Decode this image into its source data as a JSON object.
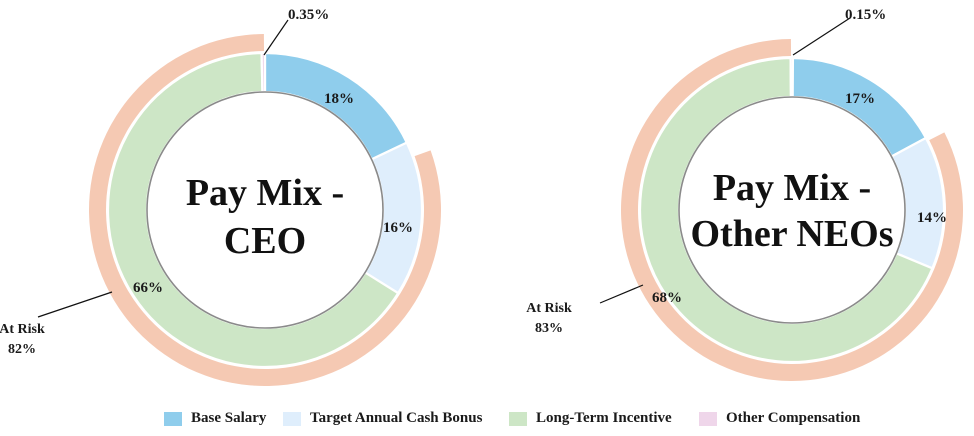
{
  "chart_data": [
    {
      "type": "pie",
      "title": "Pay Mix - CEO",
      "title_lines": [
        "Pay Mix -",
        "CEO"
      ],
      "categories": [
        "Base Salary",
        "Target Annual Cash Bonus",
        "Long-Term Incentive",
        "Other Compensation"
      ],
      "values": [
        18,
        16,
        66,
        0.35
      ],
      "value_labels": [
        "18%",
        "16%",
        "66%",
        "0.35%"
      ],
      "at_risk": {
        "label": "At Risk",
        "value": 82,
        "value_label": "82%"
      }
    },
    {
      "type": "pie",
      "title": "Pay Mix - Other NEOs",
      "title_lines": [
        "Pay Mix -",
        "Other NEOs"
      ],
      "categories": [
        "Base Salary",
        "Target Annual Cash Bonus",
        "Long-Term Incentive",
        "Other Compensation"
      ],
      "values": [
        17,
        14,
        68,
        0.15
      ],
      "value_labels": [
        "17%",
        "14%",
        "68%",
        "0.15%"
      ],
      "at_risk": {
        "label": "At Risk",
        "value": 83,
        "value_label": "83%"
      }
    }
  ],
  "legend": {
    "items": [
      {
        "label": "Base Salary",
        "color": "#8fcdec"
      },
      {
        "label": "Target Annual Cash Bonus",
        "color": "#dfeefc"
      },
      {
        "label": "Long-Term Incentive",
        "color": "#cde6c6"
      },
      {
        "label": "Other Compensation",
        "color": "#efd6ea"
      }
    ]
  },
  "colors": {
    "base_salary": "#8fcdec",
    "target_bonus": "#dfeefc",
    "long_term_incentive": "#cde6c6",
    "other_compensation": "#efd6ea",
    "at_risk_ring": "#f5c9b3"
  }
}
